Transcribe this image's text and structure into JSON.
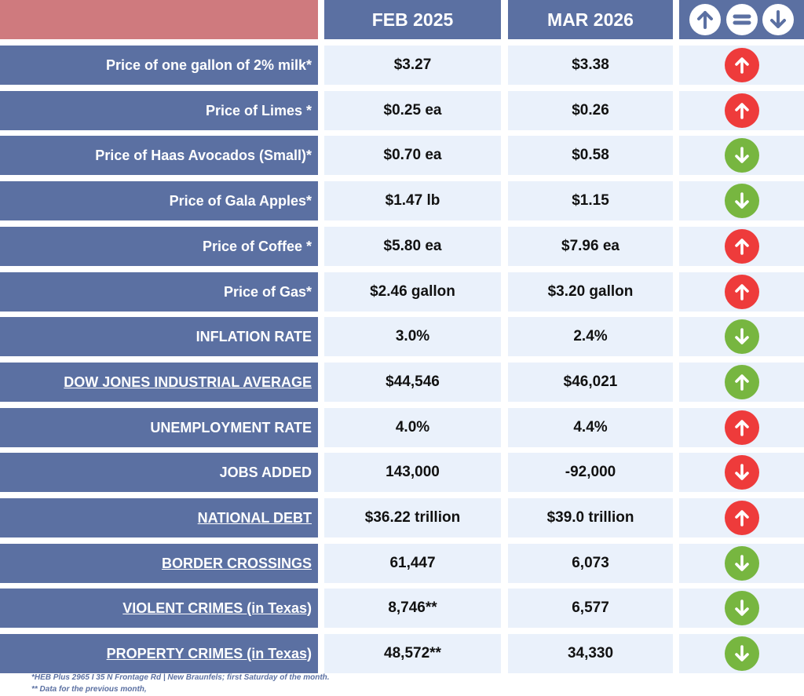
{
  "header": {
    "col1": "FEB 2025",
    "col2": "MAR 2026",
    "legend_icons": [
      "up-arrow-icon",
      "equal-icon",
      "down-arrow-icon"
    ]
  },
  "colors": {
    "header_bg": "#5b70a2",
    "corner_bg": "#cf7a7e",
    "value_bg": "#eaf1fb",
    "up_red": "#ee3b3b",
    "down_green": "#77b640"
  },
  "rows": [
    {
      "label": "Price of one gallon of 2% milk*",
      "feb": "$3.27",
      "mar": "$3.38",
      "trend": "up",
      "color": "red",
      "underline": false
    },
    {
      "label": "Price of Limes *",
      "feb": "$0.25 ea",
      "mar": "$0.26",
      "trend": "up",
      "color": "red",
      "underline": false
    },
    {
      "label": "Price of Haas Avocados (Small)*",
      "feb": "$0.70 ea",
      "mar": "$0.58",
      "trend": "down",
      "color": "green",
      "underline": false
    },
    {
      "label": "Price of Gala Apples*",
      "feb": "$1.47 lb",
      "mar": "$1.15",
      "trend": "down",
      "color": "green",
      "underline": false
    },
    {
      "label": "Price of Coffee *",
      "feb": "$5.80 ea",
      "mar": "$7.96 ea",
      "trend": "up",
      "color": "red",
      "underline": false
    },
    {
      "label": "Price of Gas*",
      "feb": "$2.46 gallon",
      "mar": "$3.20 gallon",
      "trend": "up",
      "color": "red",
      "underline": false
    },
    {
      "label": "INFLATION RATE",
      "feb": "3.0%",
      "mar": "2.4%",
      "trend": "down",
      "color": "green",
      "underline": false
    },
    {
      "label": "DOW JONES INDUSTRIAL AVERAGE",
      "feb": "$44,546",
      "mar": "$46,021",
      "trend": "up",
      "color": "green",
      "underline": true
    },
    {
      "label": "UNEMPLOYMENT RATE",
      "feb": "4.0%",
      "mar": "4.4%",
      "trend": "up",
      "color": "red",
      "underline": false
    },
    {
      "label": "JOBS ADDED",
      "feb": "143,000",
      "mar": "-92,000",
      "trend": "down",
      "color": "red",
      "underline": false
    },
    {
      "label": "NATIONAL DEBT",
      "feb": "$36.22 trillion",
      "mar": "$39.0 trillion",
      "trend": "up",
      "color": "red",
      "underline": true
    },
    {
      "label": "BORDER CROSSINGS",
      "feb": "61,447",
      "mar": "6,073",
      "trend": "down",
      "color": "green",
      "underline": true
    },
    {
      "label": "VIOLENT CRIMES (in Texas)",
      "feb": "8,746**",
      "mar": "6,577",
      "trend": "down",
      "color": "green",
      "underline": true
    },
    {
      "label": "PROPERTY CRIMES (in Texas)",
      "feb": "48,572**",
      "mar": "34,330",
      "trend": "down",
      "color": "green",
      "underline": true
    }
  ],
  "footnotes": {
    "note1": "*HEB Plus 2965 I 35 N Frontage Rd | New Braunfels; first Saturday of the month.",
    "note2": "** Data for the previous month,"
  }
}
